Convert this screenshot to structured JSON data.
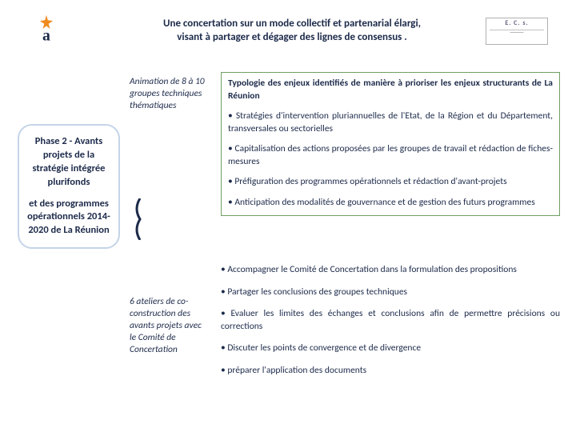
{
  "logo": {
    "star_color": "#f08a1d",
    "letter_color": "#1c2a4a"
  },
  "title": "Une concertation sur un mode collectif et partenarial élargi,\nvisant à partager et dégager des lignes de consensus .",
  "badge": {
    "line1": "E. C. s.",
    "border_color": "#b0b0b0"
  },
  "phase": {
    "part1": "Phase 2 - Avants projets de la stratégie intégrée plurifonds",
    "part2": "et des programmes opérationnels 2014-2020 de La Réunion",
    "border_color": "#c5d4e8"
  },
  "mid": {
    "top": "Animation de 8 à 10 groupes techniques thématiques",
    "bottom": "6 ateliers de co-construction des avants projets avec le Comité de Concertation"
  },
  "bracket": {
    "color": "#1c2a4a"
  },
  "box1": {
    "border_color": "#6ea060",
    "head": "Typologie des enjeux identifiés de manière à prioriser les enjeux structurants de La Réunion",
    "items": [
      "• Stratégies d'intervention pluriannuelles de l'Etat, de la Région et du Département, transversales ou sectorielles",
      "• Capitalisation des actions proposées par les groupes de travail et rédaction de fiches-mesures",
      "• Préfiguration des programmes opérationnels et rédaction d'avant-projets",
      "• Anticipation des modalités de gouvernance et de gestion des futurs programmes"
    ]
  },
  "box2": {
    "items": [
      "• Accompagner le Comité de Concertation dans la formulation des propositions",
      "• Partager les conclusions des groupes techniques",
      "• Evaluer les limites des échanges et conclusions afin de permettre précisions ou corrections",
      "• Discuter les points de convergence et de divergence",
      "• préparer l'application des documents"
    ]
  }
}
